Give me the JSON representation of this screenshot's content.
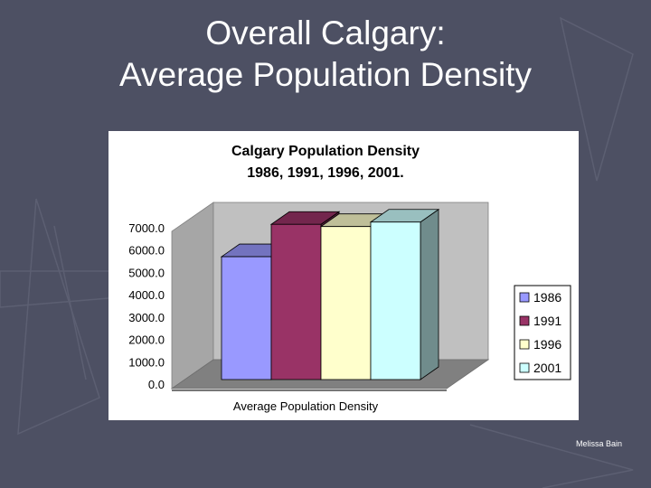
{
  "slide": {
    "title_line1": "Overall Calgary:",
    "title_line2": "Average Population Density",
    "author": "Melissa Bain",
    "colors": {
      "background": "#4d5063",
      "title": "#ffffff"
    }
  },
  "chart_data": {
    "type": "bar",
    "title_line1": "Calgary Population Density",
    "title_line2": "1986, 1991, 1996, 2001.",
    "xlabel": "Average Population Density",
    "ylabel": "",
    "categories": [
      "Average Population Density"
    ],
    "series": [
      {
        "name": "1986",
        "values": [
          5500
        ],
        "color": "#9999ff"
      },
      {
        "name": "1991",
        "values": [
          6950
        ],
        "color": "#993366"
      },
      {
        "name": "1996",
        "values": [
          6850
        ],
        "color": "#ffffcc"
      },
      {
        "name": "2001",
        "values": [
          7050
        ],
        "color": "#ccffff"
      }
    ],
    "yticks": [
      "0.0",
      "1000.0",
      "2000.0",
      "3000.0",
      "4000.0",
      "5000.0",
      "6000.0",
      "7000.0"
    ],
    "ylim": [
      0,
      7000
    ],
    "grid": false,
    "legend_position": "right",
    "three_d": true,
    "plot_background": "#c0c0c0",
    "floor_color": "#808080"
  }
}
